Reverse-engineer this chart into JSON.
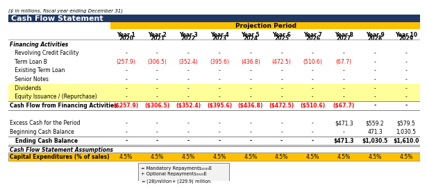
{
  "title_text": "Cash Flow Statement",
  "subtitle": "($ in millions, fiscal year ending December 31)",
  "projection_label": "Projection Period",
  "col_headers": [
    "Year 1\n2020",
    "Year 2\n2021",
    "Year 3\n2022",
    "Year 4\n2023",
    "Year 5\n2024",
    "Year 6\n2025",
    "Year 7\n2026",
    "Year 8\n2027",
    "Year 9\n2028",
    "Year 10\n2029"
  ],
  "data": {
    "Revolving Credit Facility": [
      "-",
      "-",
      "-",
      "-",
      "-",
      "-",
      "-",
      "-",
      "-",
      "-"
    ],
    "Term Loan B": [
      "(257.9)",
      "(306.5)",
      "(352.4)",
      "(395.6)",
      "(436.8)",
      "(472.5)",
      "(510.6)",
      "(67.7)",
      "-",
      "-"
    ],
    "Existing Term Loan": [
      "-",
      "-",
      "-",
      "-",
      "-",
      "-",
      "-",
      "-",
      "-",
      "-"
    ],
    "Senior Notes": [
      "-",
      "-",
      "-",
      "-",
      "-",
      "-",
      "-",
      "-",
      "-",
      "-"
    ],
    "Dividends": [
      "-",
      "-",
      "-",
      "-",
      "-",
      "-",
      "-",
      "-",
      "-",
      "-"
    ],
    "Equity Issuance / (Repurchase)": [
      "-",
      "-",
      "-",
      "-",
      "-",
      "-",
      "-",
      "-",
      "-",
      "-"
    ],
    "Cash Flow from Financing Activities": [
      "($257.9)",
      "($306.5)",
      "($352.4)",
      "($395.6)",
      "($436.8)",
      "($472.5)",
      "($510.6)",
      "($67.7)",
      "-",
      "-"
    ],
    "Excess Cash for the Period": [
      "-",
      "-",
      "-",
      "-",
      "-",
      "-",
      "-",
      "$471.3",
      "$559.2",
      "$579.5"
    ],
    "Beginning Cash Balance": [
      "-",
      "-",
      "-",
      "-",
      "-",
      "-",
      "-",
      "-",
      "471.3",
      "1,030.5"
    ],
    "Ending Cash Balance": [
      "-",
      "-",
      "-",
      "-",
      "-",
      "-",
      "-",
      "$471.3",
      "$1,030.5",
      "$1,610.0"
    ],
    "Capital Expenditures (% of sales)": [
      "4.5%",
      "4.5%",
      "4.5%",
      "4.5%",
      "4.5%",
      "4.5%",
      "4.5%",
      "4.5%",
      "4.5%",
      "4.5%"
    ]
  },
  "colors": {
    "header_bg": "#1F3864",
    "header_text": "#FFFFFF",
    "projection_bg": "#FFC000",
    "projection_text": "#000000",
    "row_bg_yellow": "#FFFF99",
    "capex_row_bg": "#FFC000",
    "red_text": "#FF0000",
    "black_text": "#000000",
    "grid_line": "#808080"
  },
  "annotation": {
    "lines": [
      "= Mandatory Repayments₂₀₂₀E",
      "+ Optional Repayments₂₀₂₀E",
      "= ($28) million + ($229.9) million"
    ]
  }
}
